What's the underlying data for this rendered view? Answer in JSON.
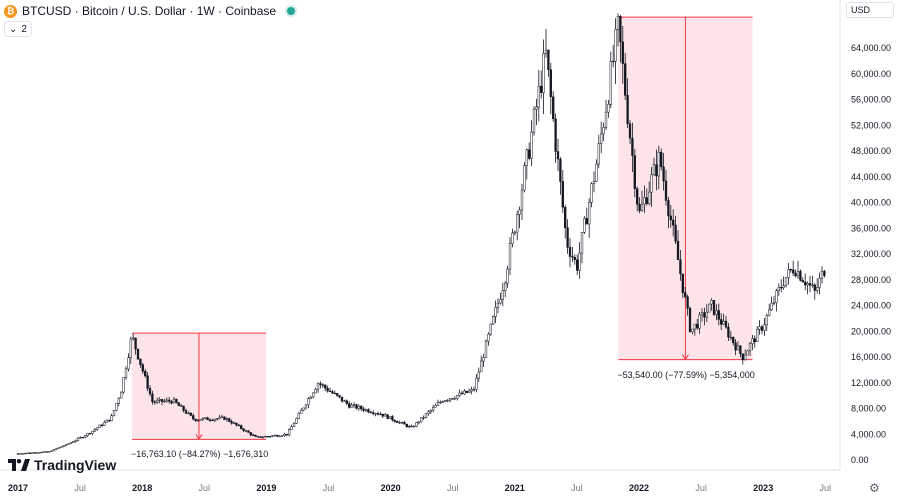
{
  "header": {
    "symbol": "BTCUSD",
    "description": "Bitcoin / U.S. Dollar",
    "interval": "1W",
    "exchange": "Coinbase",
    "title": "BTCUSD · Bitcoin / U.S. Dollar · 1W · Coinbase",
    "coin_glyph": "₿",
    "status_color": "#26a69a"
  },
  "indicator_toggle": {
    "label": "2",
    "icon": "chevron-down-icon"
  },
  "currency_selector": {
    "value": "USD"
  },
  "brand": {
    "name": "TradingView"
  },
  "settings": {
    "icon": "gear-icon"
  },
  "chart_data": {
    "type": "candlestick",
    "interval": "1W",
    "x_axis": {
      "labels": [
        "2017",
        "Jul",
        "2018",
        "Jul",
        "2019",
        "Jul",
        "2020",
        "Jul",
        "2021",
        "Jul",
        "2022",
        "Jul",
        "2023",
        "Jul"
      ]
    },
    "y_axis": {
      "range": [
        0,
        66000
      ],
      "position": "right",
      "ticks": [
        "64,000.00",
        "60,000.00",
        "56,000.00",
        "52,000.00",
        "48,000.00",
        "44,000.00",
        "40,000.00",
        "36,000.00",
        "32,000.00",
        "28,000.00",
        "24,000.00",
        "20,000.00",
        "16,000.00",
        "12,000.00",
        "8,000.00",
        "4,000.00",
        "0.00"
      ]
    },
    "grid": false,
    "colors": {
      "candle": "#131722",
      "measure_fill": "#fce4e8",
      "measure_line": "#f23645"
    },
    "series": [
      {
        "date": "2017-01",
        "value": 1000
      },
      {
        "date": "2017-04",
        "value": 1300
      },
      {
        "date": "2017-06",
        "value": 2600
      },
      {
        "date": "2017-08",
        "value": 4300
      },
      {
        "date": "2017-10",
        "value": 6500
      },
      {
        "date": "2017-11",
        "value": 11000
      },
      {
        "date": "2017-12",
        "value": 19300
      },
      {
        "date": "2018-02",
        "value": 9000
      },
      {
        "date": "2018-04",
        "value": 9200
      },
      {
        "date": "2018-06",
        "value": 6300
      },
      {
        "date": "2018-09",
        "value": 6500
      },
      {
        "date": "2018-12",
        "value": 3500
      },
      {
        "date": "2019-03",
        "value": 4000
      },
      {
        "date": "2019-06",
        "value": 12000
      },
      {
        "date": "2019-09",
        "value": 8500
      },
      {
        "date": "2019-12",
        "value": 7200
      },
      {
        "date": "2020-03",
        "value": 5000
      },
      {
        "date": "2020-06",
        "value": 9300
      },
      {
        "date": "2020-09",
        "value": 10800
      },
      {
        "date": "2020-12",
        "value": 28000
      },
      {
        "date": "2021-02",
        "value": 45000
      },
      {
        "date": "2021-04",
        "value": 63000
      },
      {
        "date": "2021-06",
        "value": 34000
      },
      {
        "date": "2021-07",
        "value": 30000
      },
      {
        "date": "2021-09",
        "value": 47000
      },
      {
        "date": "2021-11",
        "value": 67000
      },
      {
        "date": "2022-01",
        "value": 38000
      },
      {
        "date": "2022-03",
        "value": 47000
      },
      {
        "date": "2022-06",
        "value": 20000
      },
      {
        "date": "2022-08",
        "value": 24000
      },
      {
        "date": "2022-11",
        "value": 16000
      },
      {
        "date": "2023-01",
        "value": 21000
      },
      {
        "date": "2023-03",
        "value": 28000
      },
      {
        "date": "2023-04",
        "value": 30000
      },
      {
        "date": "2023-06",
        "value": 26000
      },
      {
        "date": "2023-07",
        "value": 30000
      }
    ],
    "annotations": [
      {
        "type": "price_range",
        "from_date": "2017-12",
        "to_date": "2018-12",
        "high": 19700,
        "low": 3200,
        "label": "−16,763.10 (−84.27%) −1,676,310"
      },
      {
        "type": "price_range",
        "from_date": "2021-11",
        "to_date": "2022-11",
        "high": 68800,
        "low": 15600,
        "label": "−53,540.00 (−77.59%) −5,354,000"
      }
    ]
  }
}
